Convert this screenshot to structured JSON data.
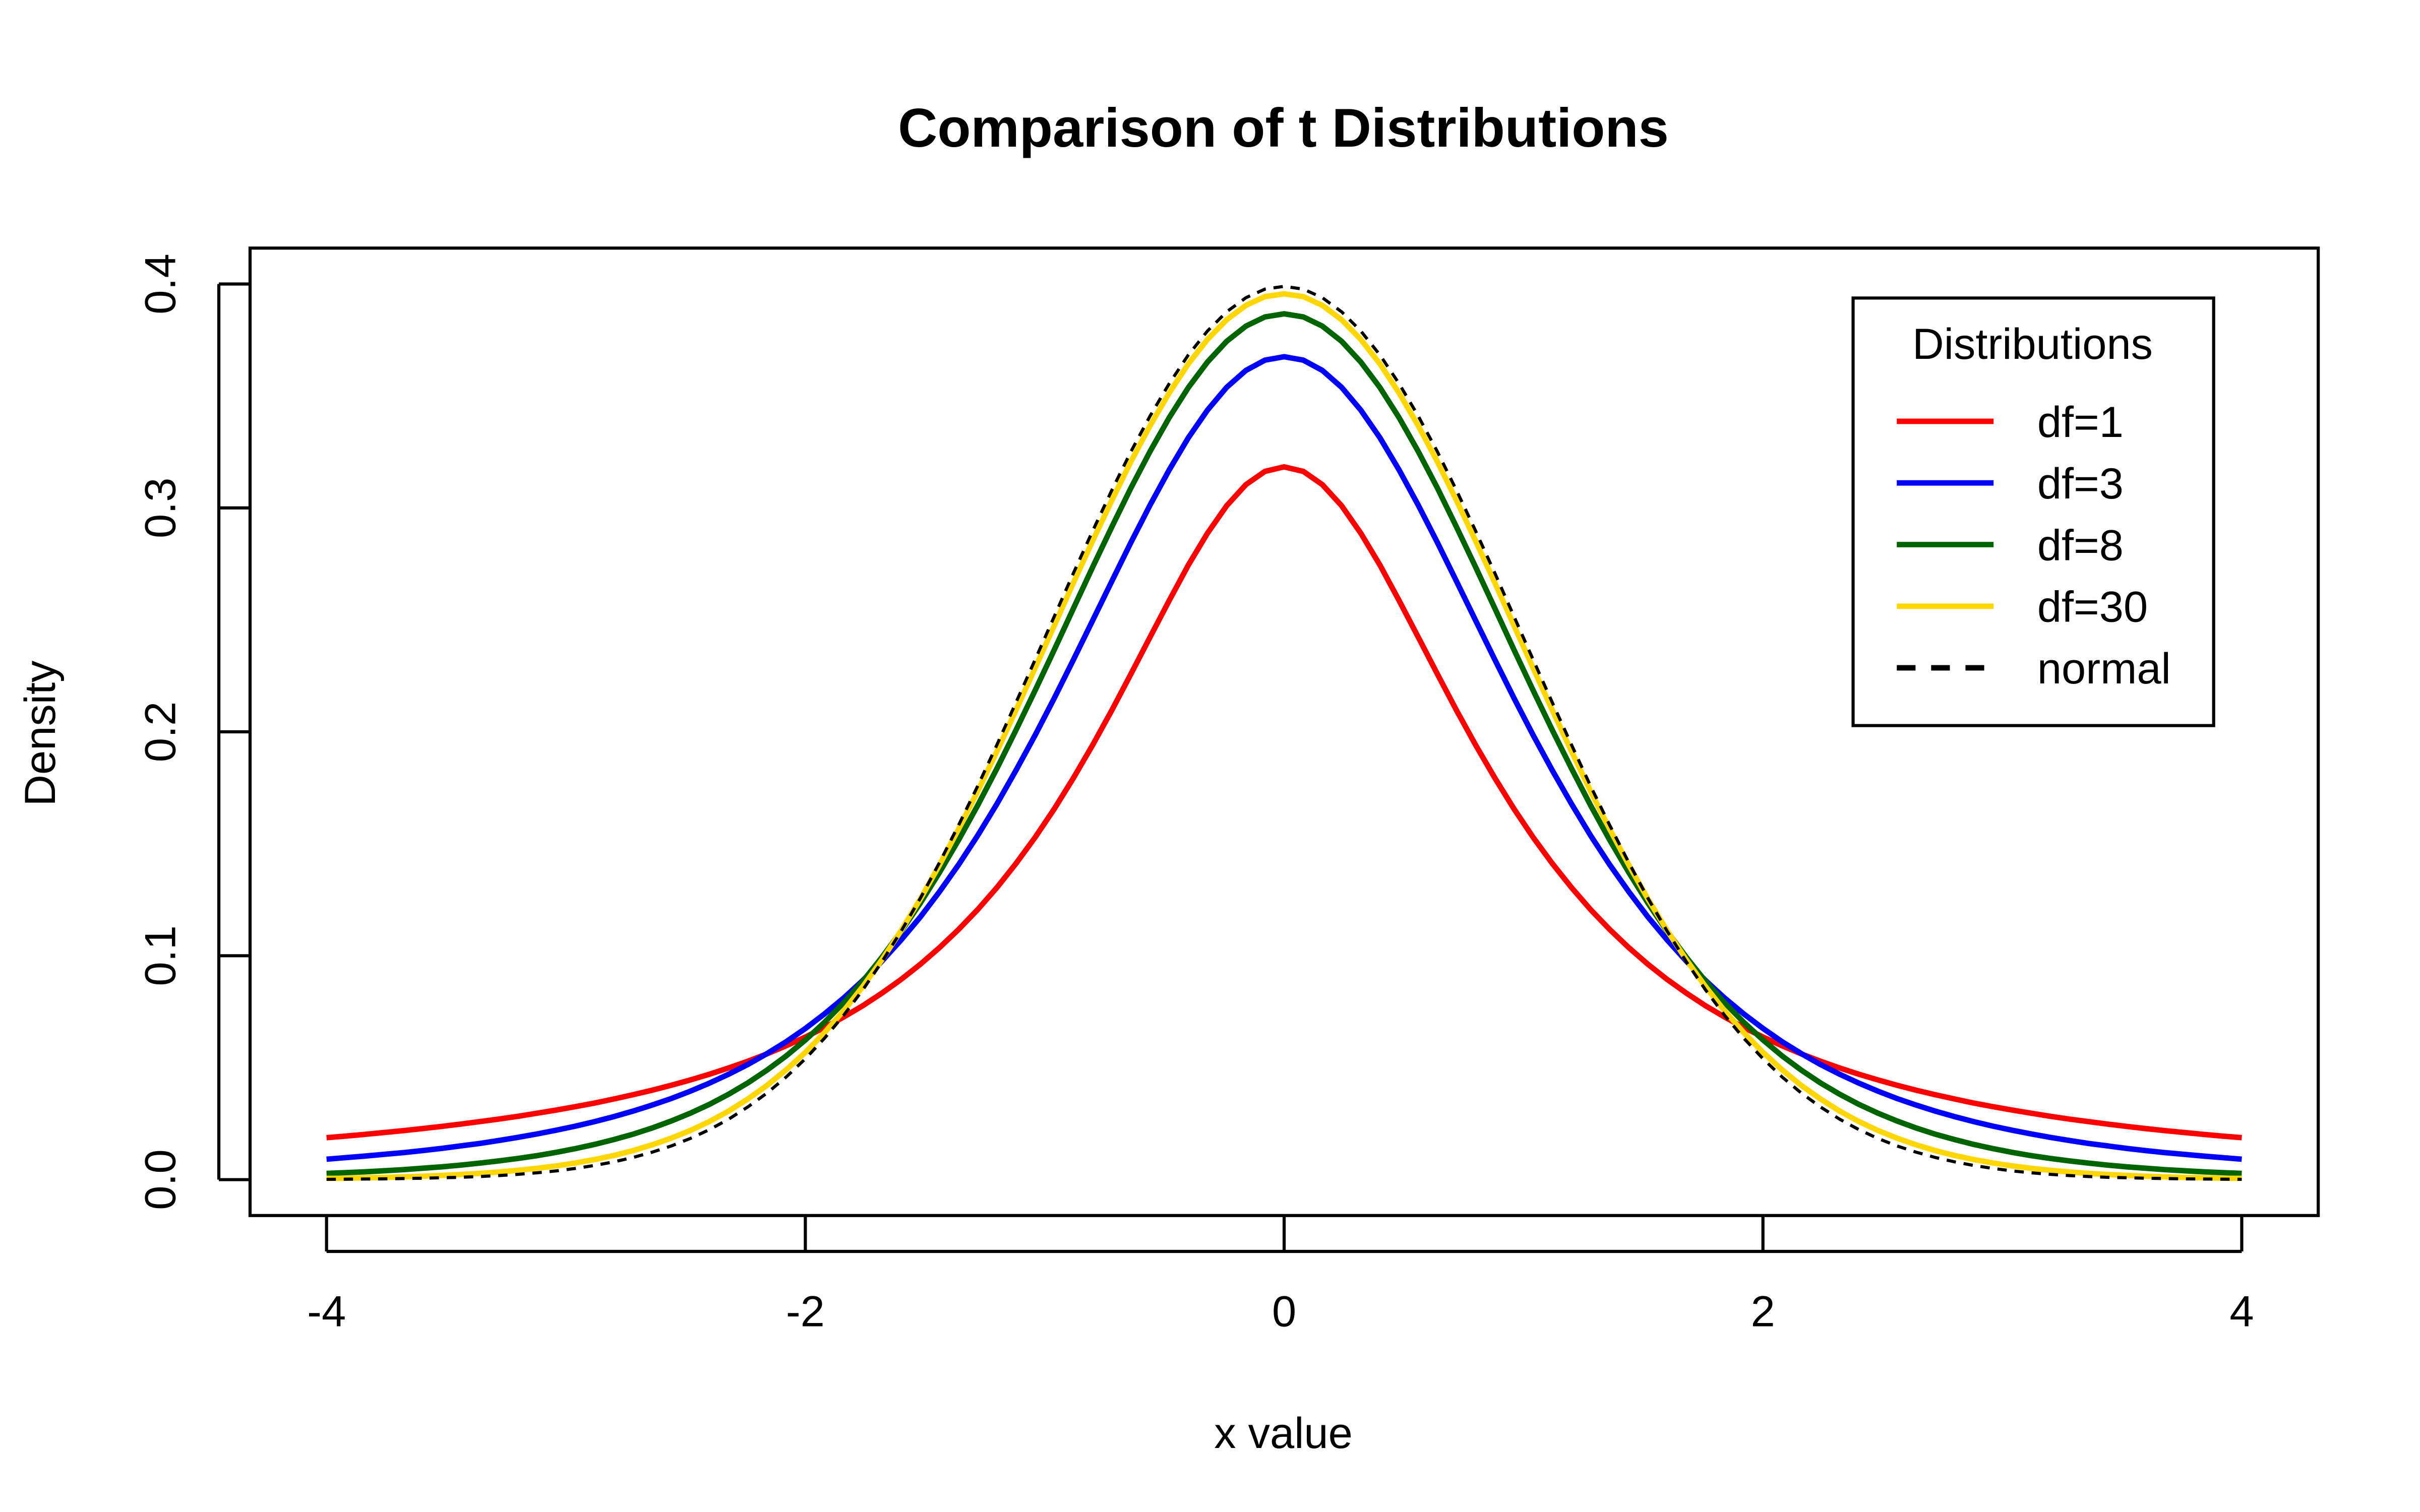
{
  "chart_data": {
    "type": "line",
    "title": "Comparison of t Distributions",
    "xlabel": "x value",
    "ylabel": "Density",
    "xlim": [
      -4,
      4
    ],
    "ylim": [
      0,
      0.4
    ],
    "xticks": [
      "-4",
      "-2",
      "0",
      "2",
      "4"
    ],
    "xtick_values": [
      -4,
      -2,
      0,
      2,
      4
    ],
    "yticks": [
      "0.0",
      "0.1",
      "0.2",
      "0.3",
      "0.4"
    ],
    "ytick_values": [
      0,
      0.1,
      0.2,
      0.3,
      0.4
    ],
    "grid": false,
    "legend": {
      "title": "Distributions",
      "placement": "top-right"
    },
    "series": [
      {
        "name": "df=1",
        "df": 1,
        "color": "#ff0000",
        "dash": false,
        "peak": 0.318,
        "value_at_4": 0.0187
      },
      {
        "name": "df=3",
        "df": 3,
        "color": "#0000ff",
        "dash": false,
        "peak": 0.368,
        "value_at_4": 0.0092
      },
      {
        "name": "df=8",
        "df": 8,
        "color": "#006400",
        "dash": false,
        "peak": 0.387,
        "value_at_4": 0.0026
      },
      {
        "name": "df=30",
        "df": 30,
        "color": "#ffd700",
        "dash": false,
        "peak": 0.396,
        "value_at_4": 0.0003
      },
      {
        "name": "normal",
        "df": null,
        "color": "#000000",
        "dash": true,
        "peak": 0.399,
        "value_at_4": 0.0001
      }
    ]
  }
}
